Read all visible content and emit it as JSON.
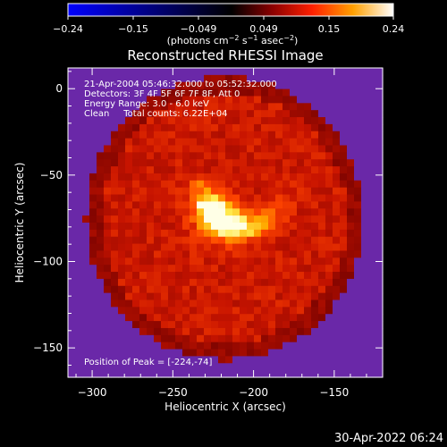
{
  "colorbar": {
    "ticks": [
      "−0.24",
      "−0.15",
      "−0.049",
      "0.049",
      "0.15",
      "0.24"
    ],
    "units_prefix": "(photons cm",
    "units_exp1": "−2",
    "units_mid": " s",
    "units_exp2": "−1",
    "units_mid2": " asec",
    "units_exp3": "−2",
    "units_suffix": ")"
  },
  "chart_data": {
    "type": "heatmap",
    "title": "Reconstructed RHESSI Image",
    "xlabel": "Heliocentric X (arcsec)",
    "ylabel": "Heliocentric Y (arcsec)",
    "xlim": [
      -315,
      -120
    ],
    "ylim": [
      -167,
      12
    ],
    "x_ticks": [
      "−300",
      "−250",
      "−200",
      "−150"
    ],
    "y_ticks": [
      "0",
      "−50",
      "−100",
      "−150"
    ],
    "colorbar_range": [
      -0.24,
      0.24
    ],
    "peak": [
      -224,
      -74
    ],
    "colors": {
      "low": "#0000ff",
      "mid": "#ff0000",
      "high": "#ffffff",
      "background": "#6a28a8"
    },
    "annotations": [
      "21-Apr-2004 05:46:32.000 to 05:52:32.000",
      "Detectors: 3F 4F 5F 6F 7F 8F, Att 0",
      "Energy Range: 3.0 - 6.0 keV",
      "Clean     Total counts: 6.22E+04",
      "Position of Peak = [-224,-74]"
    ]
  },
  "footer": {
    "date": "30-Apr-2022 06:24"
  }
}
